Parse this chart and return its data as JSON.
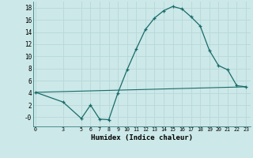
{
  "xlabel": "Humidex (Indice chaleur)",
  "background_color": "#cce8e8",
  "grid_color": "#b8d8d8",
  "line_color": "#1a6b6b",
  "x_ticks": [
    0,
    3,
    5,
    6,
    7,
    8,
    9,
    10,
    11,
    12,
    13,
    14,
    15,
    16,
    17,
    18,
    19,
    20,
    21,
    22,
    23
  ],
  "curve1_x": [
    0,
    3,
    5,
    6,
    7,
    8,
    9,
    10,
    11,
    12,
    13,
    14,
    15,
    16,
    17,
    18,
    19,
    20,
    21,
    22,
    23
  ],
  "curve1_y": [
    4.1,
    2.5,
    -0.2,
    2.0,
    -0.3,
    -0.4,
    4.0,
    7.8,
    11.2,
    14.4,
    16.3,
    17.5,
    18.2,
    17.8,
    16.5,
    15.0,
    11.0,
    8.5,
    7.8,
    5.2,
    5.0
  ],
  "curve2_x": [
    0,
    23
  ],
  "curve2_y": [
    4.1,
    5.0
  ],
  "ylim": [
    -1.5,
    19
  ],
  "xlim": [
    -0.3,
    23.5
  ],
  "yticks": [
    0,
    2,
    4,
    6,
    8,
    10,
    12,
    14,
    16,
    18
  ],
  "ytick_labels": [
    "-0",
    "2",
    "4",
    "6",
    "8",
    "10",
    "12",
    "14",
    "16",
    "18"
  ]
}
